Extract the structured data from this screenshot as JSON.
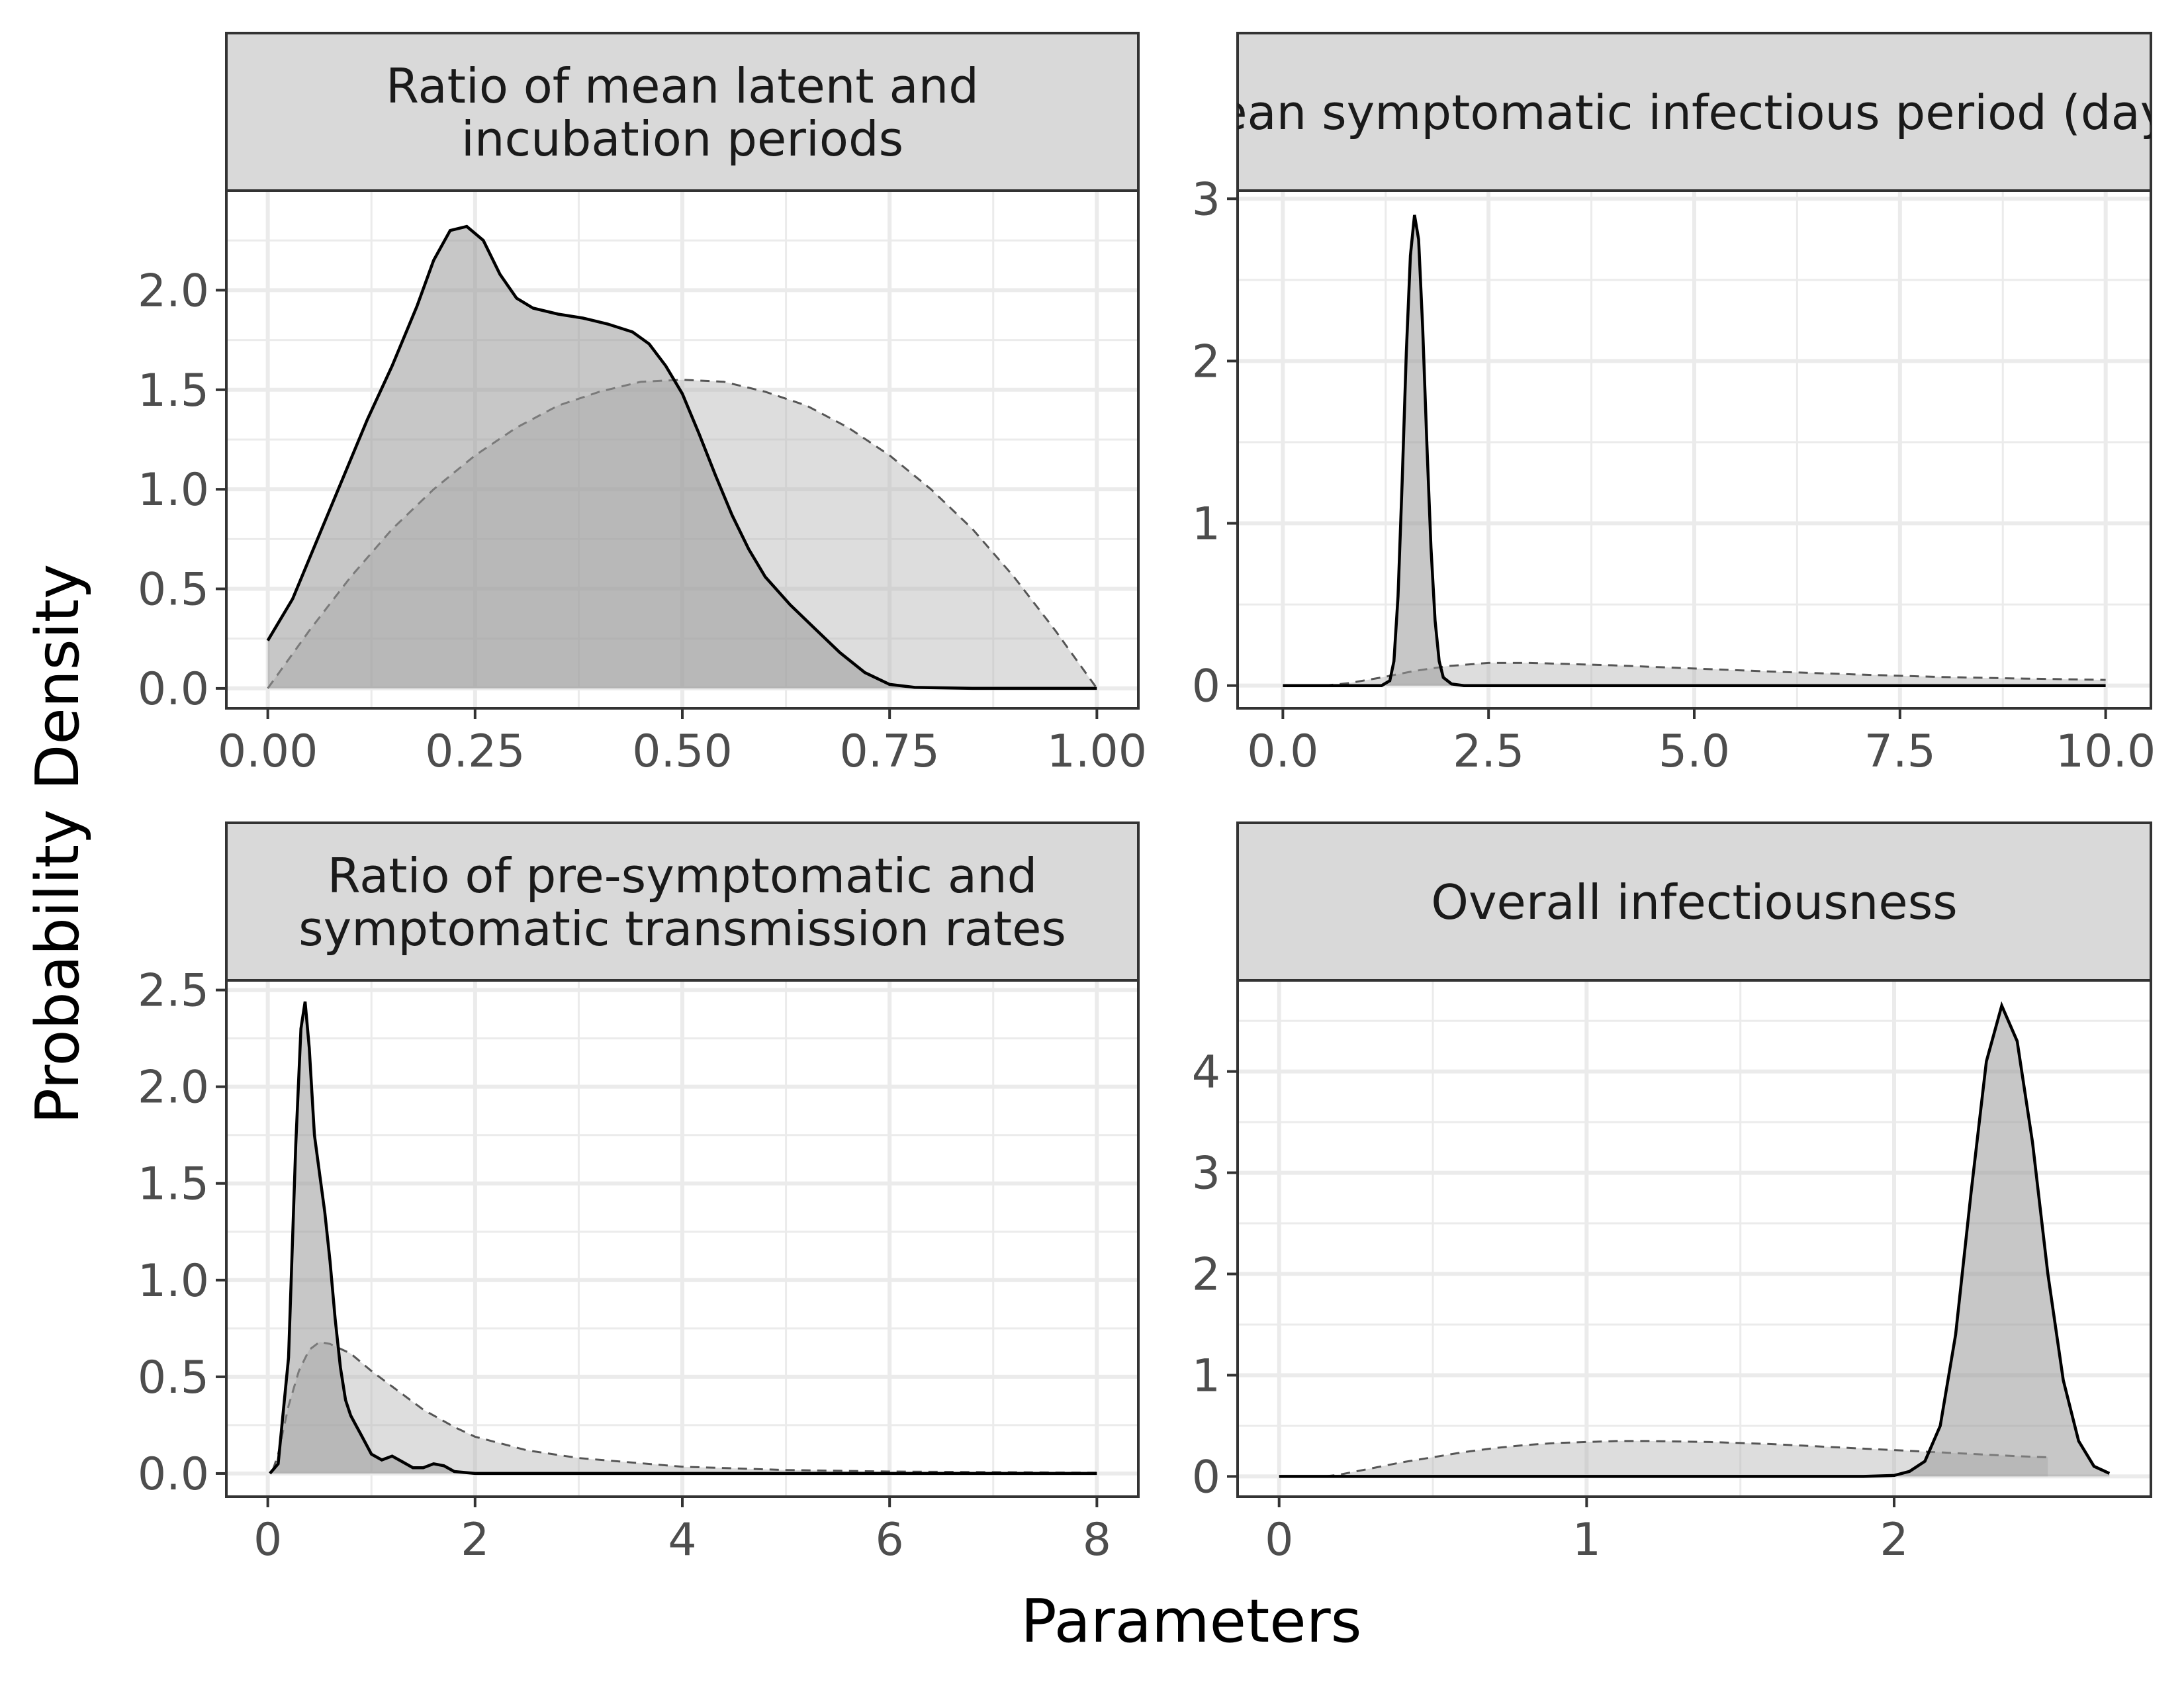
{
  "figure": {
    "ylabel": "Probability Density",
    "xlabel": "Parameters"
  },
  "chart_data": [
    {
      "type": "area",
      "title_lines": [
        "Ratio of mean latent and",
        "incubation periods"
      ],
      "xlim": [
        -0.05,
        1.05
      ],
      "ylim": [
        -0.1,
        2.5
      ],
      "x_ticks": [
        0,
        0.25,
        0.5,
        0.75,
        1.0
      ],
      "x_tick_labels": [
        "0.00",
        "0.25",
        "0.50",
        "0.75",
        "1.00"
      ],
      "y_ticks": [
        0,
        0.5,
        1.0,
        1.5,
        2.0
      ],
      "y_tick_labels": [
        "0.0",
        "0.5",
        "1.0",
        "1.5",
        "2.0"
      ],
      "series": [
        {
          "role": "prior",
          "line_style": "dashed",
          "points": [
            [
              0,
              0
            ],
            [
              0.05,
              0.29
            ],
            [
              0.1,
              0.56
            ],
            [
              0.15,
              0.8
            ],
            [
              0.2,
              1.0
            ],
            [
              0.25,
              1.17
            ],
            [
              0.3,
              1.31
            ],
            [
              0.35,
              1.42
            ],
            [
              0.4,
              1.49
            ],
            [
              0.45,
              1.54
            ],
            [
              0.5,
              1.55
            ],
            [
              0.55,
              1.54
            ],
            [
              0.6,
              1.49
            ],
            [
              0.65,
              1.42
            ],
            [
              0.7,
              1.31
            ],
            [
              0.75,
              1.17
            ],
            [
              0.8,
              1.0
            ],
            [
              0.85,
              0.8
            ],
            [
              0.9,
              0.56
            ],
            [
              0.95,
              0.29
            ],
            [
              1.0,
              0
            ]
          ]
        },
        {
          "role": "posterior",
          "line_style": "solid",
          "points": [
            [
              0,
              0.24
            ],
            [
              0.03,
              0.45
            ],
            [
              0.06,
              0.75
            ],
            [
              0.09,
              1.05
            ],
            [
              0.12,
              1.35
            ],
            [
              0.15,
              1.62
            ],
            [
              0.18,
              1.92
            ],
            [
              0.2,
              2.15
            ],
            [
              0.22,
              2.3
            ],
            [
              0.24,
              2.32
            ],
            [
              0.26,
              2.25
            ],
            [
              0.28,
              2.08
            ],
            [
              0.3,
              1.96
            ],
            [
              0.32,
              1.91
            ],
            [
              0.35,
              1.88
            ],
            [
              0.38,
              1.86
            ],
            [
              0.41,
              1.83
            ],
            [
              0.44,
              1.79
            ],
            [
              0.46,
              1.73
            ],
            [
              0.48,
              1.62
            ],
            [
              0.5,
              1.48
            ],
            [
              0.52,
              1.28
            ],
            [
              0.54,
              1.07
            ],
            [
              0.56,
              0.87
            ],
            [
              0.58,
              0.7
            ],
            [
              0.6,
              0.56
            ],
            [
              0.63,
              0.42
            ],
            [
              0.66,
              0.3
            ],
            [
              0.69,
              0.18
            ],
            [
              0.72,
              0.08
            ],
            [
              0.75,
              0.02
            ],
            [
              0.78,
              0.005
            ],
            [
              0.85,
              0
            ],
            [
              1.0,
              0
            ]
          ]
        }
      ]
    },
    {
      "type": "area",
      "title_lines": [
        "Mean symptomatic infectious period (days)"
      ],
      "xlim": [
        -0.55,
        10.55
      ],
      "ylim": [
        -0.14,
        3.05
      ],
      "x_ticks": [
        0,
        2.5,
        5,
        7.5,
        10
      ],
      "x_tick_labels": [
        "0.0",
        "2.5",
        "5.0",
        "7.5",
        "10.0"
      ],
      "y_ticks": [
        0,
        1,
        2,
        3
      ],
      "y_tick_labels": [
        "0",
        "1",
        "2",
        "3"
      ],
      "series": [
        {
          "role": "prior",
          "line_style": "dashed",
          "points": [
            [
              0.5,
              0
            ],
            [
              0.8,
              0.015
            ],
            [
              1.2,
              0.05
            ],
            [
              1.6,
              0.09
            ],
            [
              2.0,
              0.12
            ],
            [
              2.5,
              0.14
            ],
            [
              3.0,
              0.14
            ],
            [
              4.0,
              0.125
            ],
            [
              5.0,
              0.105
            ],
            [
              6.0,
              0.085
            ],
            [
              7.0,
              0.068
            ],
            [
              8.0,
              0.053
            ],
            [
              9.0,
              0.043
            ],
            [
              10.0,
              0.035
            ]
          ]
        },
        {
          "role": "posterior",
          "line_style": "solid",
          "points": [
            [
              0,
              0
            ],
            [
              1.2,
              0
            ],
            [
              1.3,
              0.03
            ],
            [
              1.35,
              0.15
            ],
            [
              1.4,
              0.55
            ],
            [
              1.45,
              1.25
            ],
            [
              1.5,
              2.05
            ],
            [
              1.55,
              2.65
            ],
            [
              1.6,
              2.9
            ],
            [
              1.65,
              2.75
            ],
            [
              1.7,
              2.2
            ],
            [
              1.75,
              1.5
            ],
            [
              1.8,
              0.85
            ],
            [
              1.85,
              0.4
            ],
            [
              1.9,
              0.15
            ],
            [
              1.95,
              0.05
            ],
            [
              2.05,
              0.01
            ],
            [
              2.2,
              0
            ],
            [
              10,
              0
            ]
          ]
        }
      ]
    },
    {
      "type": "area",
      "title_lines": [
        "Ratio of pre-symptomatic and",
        "symptomatic transmission rates"
      ],
      "xlim": [
        -0.4,
        8.4
      ],
      "ylim": [
        -0.12,
        2.55
      ],
      "x_ticks": [
        0,
        2,
        4,
        6,
        8
      ],
      "x_tick_labels": [
        "0",
        "2",
        "4",
        "6",
        "8"
      ],
      "y_ticks": [
        0,
        0.5,
        1.0,
        1.5,
        2.0,
        2.5
      ],
      "y_tick_labels": [
        "0.0",
        "0.5",
        "1.0",
        "1.5",
        "2.0",
        "2.5"
      ],
      "series": [
        {
          "role": "prior",
          "line_style": "dashed",
          "points": [
            [
              0.05,
              0.02
            ],
            [
              0.1,
              0.1
            ],
            [
              0.2,
              0.35
            ],
            [
              0.3,
              0.53
            ],
            [
              0.4,
              0.64
            ],
            [
              0.5,
              0.68
            ],
            [
              0.6,
              0.67
            ],
            [
              0.8,
              0.62
            ],
            [
              1.0,
              0.53
            ],
            [
              1.2,
              0.45
            ],
            [
              1.5,
              0.33
            ],
            [
              1.8,
              0.24
            ],
            [
              2.0,
              0.19
            ],
            [
              2.5,
              0.12
            ],
            [
              3.0,
              0.08
            ],
            [
              4.0,
              0.035
            ],
            [
              5.0,
              0.018
            ],
            [
              6.0,
              0.01
            ],
            [
              8.0,
              0.004
            ]
          ]
        },
        {
          "role": "posterior",
          "line_style": "solid",
          "points": [
            [
              0.02,
              0
            ],
            [
              0.1,
              0.05
            ],
            [
              0.2,
              0.6
            ],
            [
              0.27,
              1.7
            ],
            [
              0.32,
              2.3
            ],
            [
              0.36,
              2.44
            ],
            [
              0.4,
              2.2
            ],
            [
              0.45,
              1.75
            ],
            [
              0.5,
              1.55
            ],
            [
              0.55,
              1.35
            ],
            [
              0.6,
              1.1
            ],
            [
              0.65,
              0.8
            ],
            [
              0.7,
              0.55
            ],
            [
              0.75,
              0.38
            ],
            [
              0.8,
              0.3
            ],
            [
              0.85,
              0.25
            ],
            [
              0.9,
              0.2
            ],
            [
              0.95,
              0.15
            ],
            [
              1.0,
              0.1
            ],
            [
              1.1,
              0.07
            ],
            [
              1.2,
              0.09
            ],
            [
              1.3,
              0.06
            ],
            [
              1.4,
              0.03
            ],
            [
              1.5,
              0.03
            ],
            [
              1.6,
              0.05
            ],
            [
              1.7,
              0.04
            ],
            [
              1.8,
              0.01
            ],
            [
              2.0,
              0
            ],
            [
              8.0,
              0
            ]
          ]
        }
      ]
    },
    {
      "type": "area",
      "title_lines": [
        "Overall infectiousness"
      ],
      "xlim": [
        -0.135,
        2.835
      ],
      "ylim": [
        -0.2,
        4.9
      ],
      "x_ticks": [
        0,
        1,
        2
      ],
      "x_tick_labels": [
        "0",
        "1",
        "2"
      ],
      "y_ticks": [
        0,
        1,
        2,
        3,
        4
      ],
      "y_tick_labels": [
        "0",
        "1",
        "2",
        "3",
        "4"
      ],
      "series": [
        {
          "role": "prior",
          "line_style": "dashed",
          "points": [
            [
              0.15,
              0
            ],
            [
              0.2,
              0.02
            ],
            [
              0.3,
              0.08
            ],
            [
              0.4,
              0.14
            ],
            [
              0.5,
              0.19
            ],
            [
              0.6,
              0.24
            ],
            [
              0.7,
              0.28
            ],
            [
              0.8,
              0.31
            ],
            [
              0.9,
              0.33
            ],
            [
              1.0,
              0.34
            ],
            [
              1.1,
              0.35
            ],
            [
              1.2,
              0.35
            ],
            [
              1.3,
              0.345
            ],
            [
              1.4,
              0.34
            ],
            [
              1.5,
              0.33
            ],
            [
              1.6,
              0.32
            ],
            [
              1.7,
              0.305
            ],
            [
              1.8,
              0.29
            ],
            [
              1.9,
              0.275
            ],
            [
              2.0,
              0.26
            ],
            [
              2.1,
              0.245
            ],
            [
              2.2,
              0.23
            ],
            [
              2.3,
              0.215
            ],
            [
              2.4,
              0.2
            ],
            [
              2.5,
              0.19
            ]
          ]
        },
        {
          "role": "posterior",
          "line_style": "solid",
          "points": [
            [
              0,
              0
            ],
            [
              1.9,
              0
            ],
            [
              2.0,
              0.01
            ],
            [
              2.05,
              0.05
            ],
            [
              2.1,
              0.15
            ],
            [
              2.15,
              0.5
            ],
            [
              2.2,
              1.4
            ],
            [
              2.25,
              2.8
            ],
            [
              2.3,
              4.1
            ],
            [
              2.35,
              4.65
            ],
            [
              2.4,
              4.3
            ],
            [
              2.45,
              3.3
            ],
            [
              2.5,
              2.0
            ],
            [
              2.55,
              0.95
            ],
            [
              2.6,
              0.35
            ],
            [
              2.65,
              0.1
            ],
            [
              2.7,
              0.03
            ]
          ]
        }
      ]
    }
  ]
}
